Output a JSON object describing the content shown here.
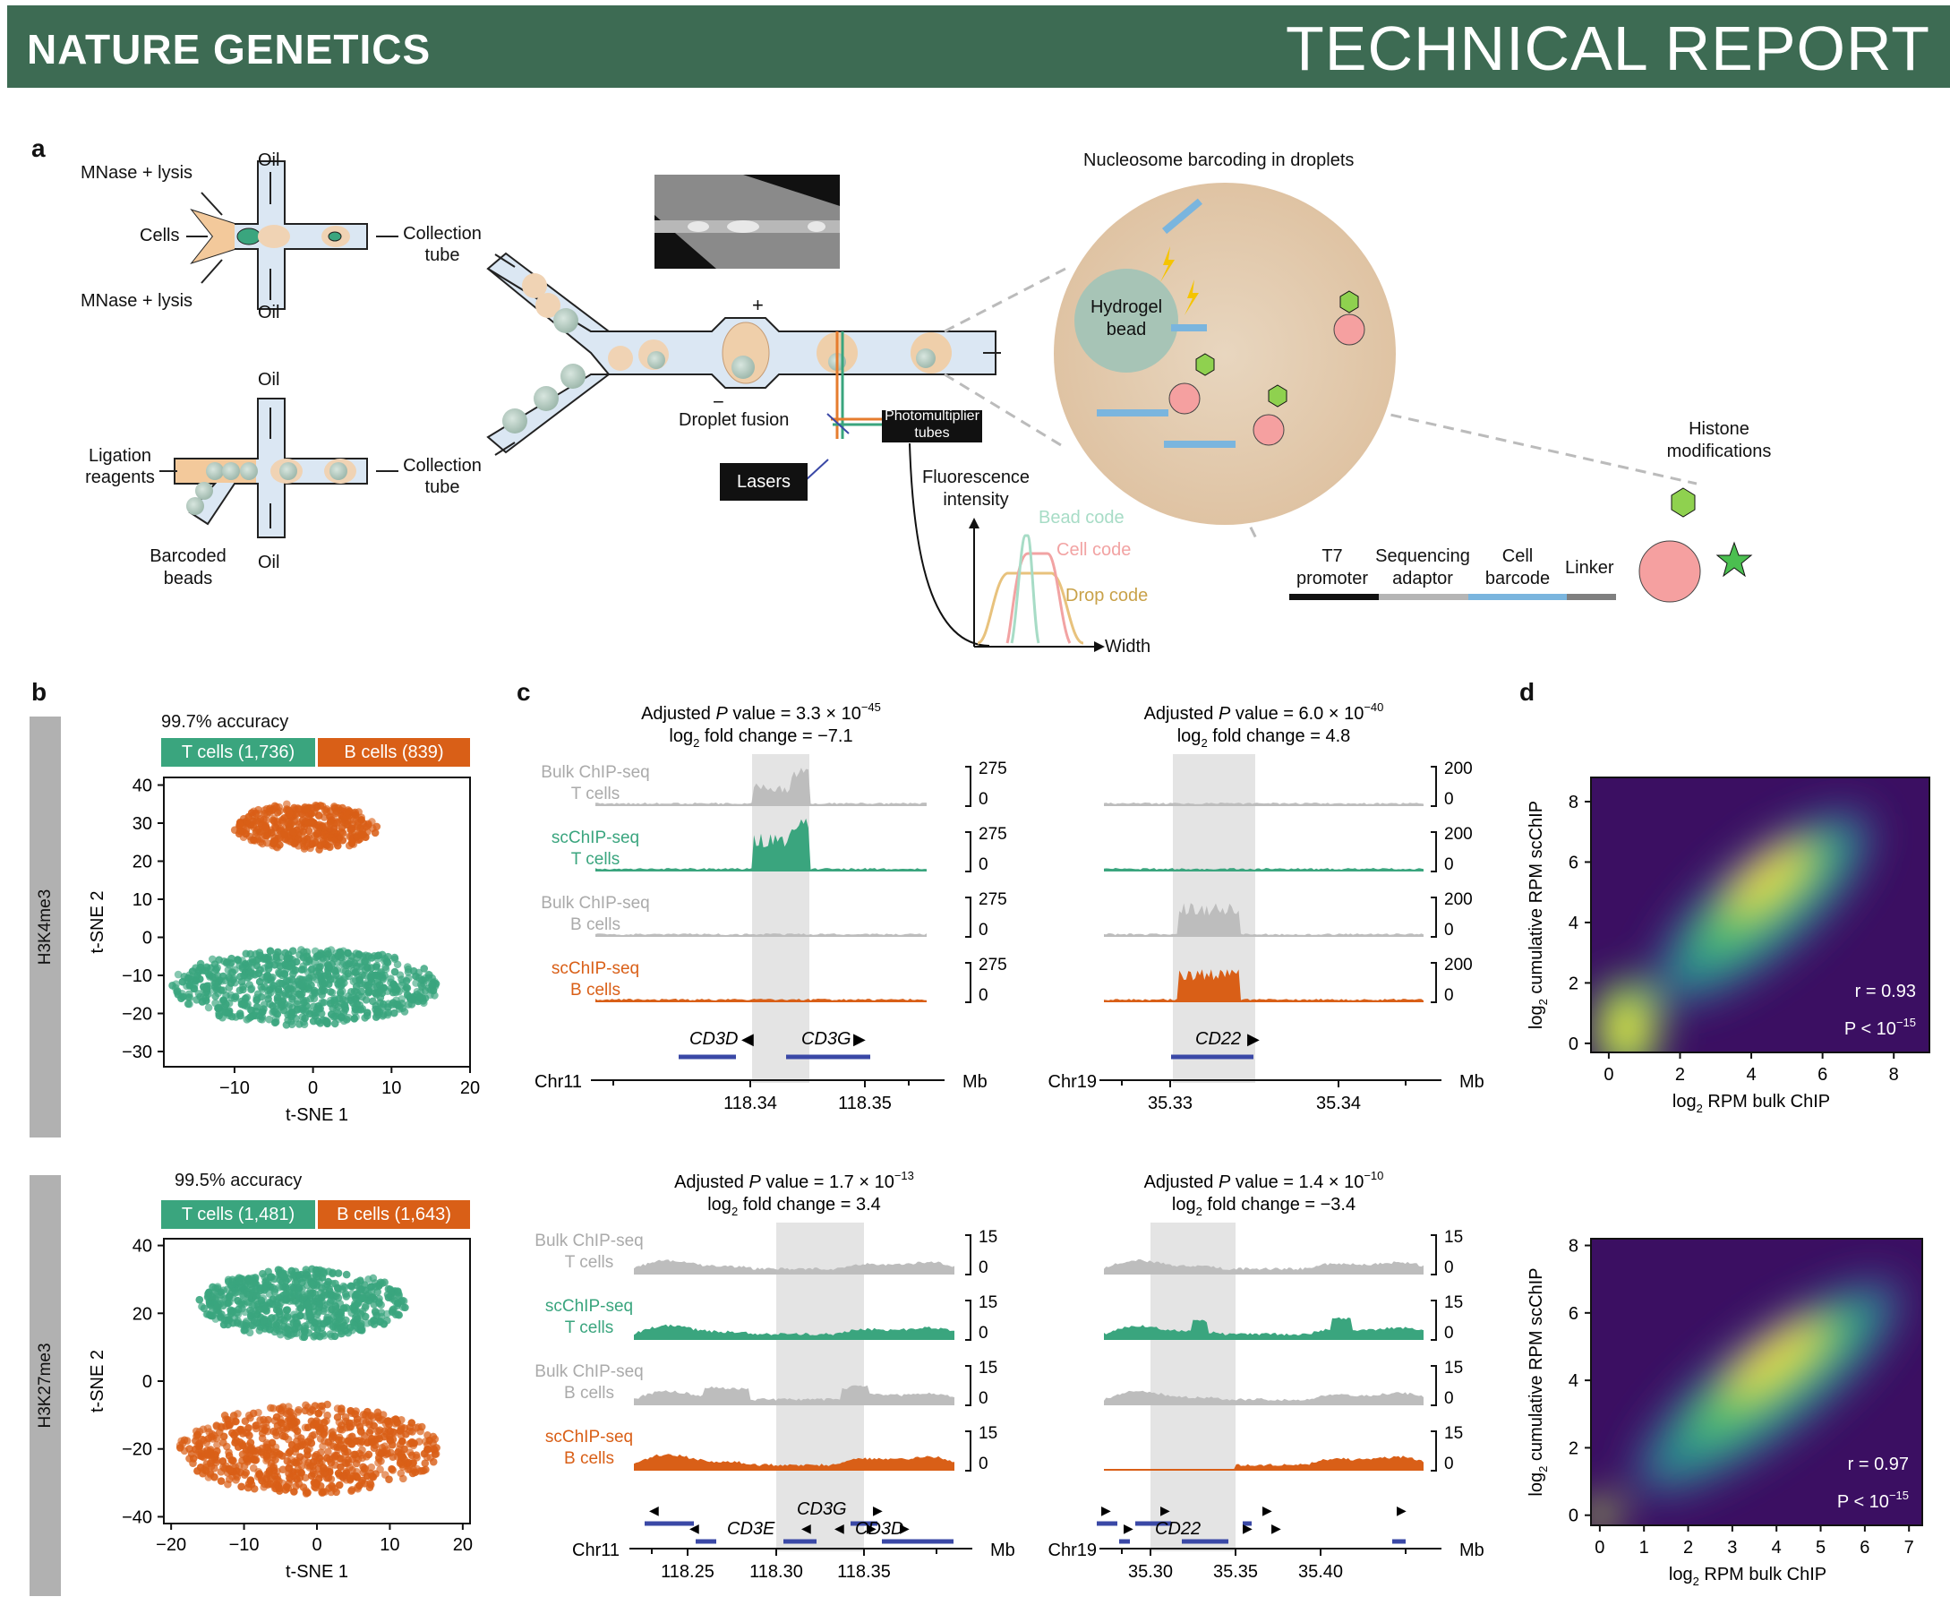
{
  "header": {
    "journal": "NATURE GENETICS",
    "report_type": "TECHNICAL REPORT"
  },
  "colors": {
    "banner": "#3d6b53",
    "t_cells": "#3aa57e",
    "b_cells": "#d95f17",
    "bulk": "#bdbdbd",
    "gene": "#3a48a6"
  },
  "panel_a": {
    "letter": "a",
    "labels": {
      "mnase_top": "MNase + lysis",
      "mnase_bottom": "MNase + lysis",
      "cells": "Cells",
      "oil_1": "Oil",
      "oil_2": "Oil",
      "oil_3": "Oil",
      "oil_4": "Oil",
      "collection_1": "Collection",
      "tube_1": "tube",
      "collection_2": "Collection",
      "tube_2": "tube",
      "ligation": "Ligation",
      "reagents": "reagents",
      "barcoded": "Barcoded",
      "beads": "beads",
      "droplet_fusion": "Droplet fusion",
      "plus": "+",
      "minus": "−",
      "lasers": "Lasers",
      "pmt_1": "Photomultiplier",
      "pmt_2": "tubes",
      "fluorescence_1": "Fluorescence",
      "fluorescence_2": "intensity",
      "width": "Width",
      "bead_code": "Bead code",
      "cell_code": "Cell code",
      "drop_code": "Drop code",
      "nucleosome_title": "Nucleosome barcoding in droplets",
      "hydrogel_1": "Hydrogel",
      "hydrogel_2": "bead",
      "histone_1": "Histone",
      "histone_2": "modifications",
      "t7_1": "T7",
      "t7_2": "promoter",
      "seq_1": "Sequencing",
      "seq_2": "adaptor",
      "cell_1": "Cell",
      "cell_2": "barcode",
      "linker": "Linker"
    }
  },
  "panel_b": {
    "letter": "b",
    "plots": [
      {
        "mark": "H3K4me3",
        "accuracy": "99.7% accuracy",
        "t_label": "T cells (1,736)",
        "b_label": "B cells (839)",
        "xlabel": "t-SNE 1",
        "ylabel": "t-SNE 2",
        "xticks": [
          "−10",
          "0",
          "10",
          "20"
        ],
        "yticks": [
          "40",
          "30",
          "20",
          "10",
          "0",
          "−10",
          "−20",
          "−30"
        ]
      },
      {
        "mark": "H3K27me3",
        "accuracy": "99.5% accuracy",
        "t_label": "T cells (1,481)",
        "b_label": "B cells (1,643)",
        "xlabel": "t-SNE 1",
        "ylabel": "t-SNE 2",
        "xticks": [
          "−20",
          "−10",
          "0",
          "10",
          "20"
        ],
        "yticks": [
          "40",
          "20",
          "0",
          "−20",
          "−40"
        ]
      }
    ]
  },
  "panel_c": {
    "letter": "c",
    "track_labels": [
      [
        "Bulk ChIP-seq",
        "T cells"
      ],
      [
        "scChIP-seq",
        "T cells"
      ],
      [
        "Bulk ChIP-seq",
        "B cells"
      ],
      [
        "scChIP-seq",
        "B cells"
      ]
    ],
    "loci": [
      {
        "title_pre": "Adjusted ",
        "title_p": "P",
        "title_mid": " value = 3.3 × 10",
        "title_exp": "−45",
        "fc_pre": "log",
        "fc_sub": "2",
        "fc_post": " fold change = −7.1",
        "scale_max": "275",
        "scale_min": "0",
        "chr": "Chr11",
        "unit": "Mb",
        "ticks": [
          "118.34",
          "118.35"
        ],
        "genes": [
          "CD3D",
          "CD3G"
        ]
      },
      {
        "title_pre": "Adjusted ",
        "title_p": "P",
        "title_mid": " value = 6.0 × 10",
        "title_exp": "−40",
        "fc_pre": "log",
        "fc_sub": "2",
        "fc_post": " fold change = 4.8",
        "scale_max": "200",
        "scale_min": "0",
        "chr": "Chr19",
        "unit": "Mb",
        "ticks": [
          "35.33",
          "35.34"
        ],
        "genes": [
          "CD22"
        ]
      },
      {
        "title_pre": "Adjusted ",
        "title_p": "P",
        "title_mid": " value = 1.7 × 10",
        "title_exp": "−13",
        "fc_pre": "log",
        "fc_sub": "2",
        "fc_post": " fold change = 3.4",
        "scale_max": "15",
        "scale_min": "0",
        "chr": "Chr11",
        "unit": "Mb",
        "ticks": [
          "118.25",
          "118.30",
          "118.35"
        ],
        "genes": [
          "CD3G",
          "CD3E",
          "CD3D"
        ]
      },
      {
        "title_pre": "Adjusted ",
        "title_p": "P",
        "title_mid": " value = 1.4 × 10",
        "title_exp": "−10",
        "fc_pre": "log",
        "fc_sub": "2",
        "fc_post": " fold change = −3.4",
        "scale_max": "15",
        "scale_min": "0",
        "chr": "Chr19",
        "unit": "Mb",
        "ticks": [
          "35.30",
          "35.35",
          "35.40"
        ],
        "genes": [
          "CD22"
        ]
      }
    ]
  },
  "panel_d": {
    "letter": "d",
    "plots": [
      {
        "r": "r = 0.93",
        "p_pre": "P < 10",
        "p_exp": "−15",
        "xticks": [
          "0",
          "2",
          "4",
          "6",
          "8"
        ],
        "yticks": [
          "0",
          "2",
          "4",
          "6",
          "8"
        ],
        "xlabel_pre": "log",
        "xlabel_sub": "2",
        "xlabel_post": " RPM bulk ChIP",
        "ylabel_pre": "log",
        "ylabel_sub": "2",
        "ylabel_post": " cumulative RPM scChIP"
      },
      {
        "r": "r = 0.97",
        "p_pre": "P < 10",
        "p_exp": "−15",
        "xticks": [
          "0",
          "1",
          "2",
          "3",
          "4",
          "5",
          "6",
          "7"
        ],
        "yticks": [
          "0",
          "2",
          "4",
          "6",
          "8"
        ],
        "xlabel_pre": "log",
        "xlabel_sub": "2",
        "xlabel_post": " RPM bulk ChIP",
        "ylabel_pre": "log",
        "ylabel_sub": "2",
        "ylabel_post": " cumulative RPM scChIP"
      }
    ]
  },
  "chart_data": [
    {
      "type": "scatter",
      "title": "H3K4me3 t-SNE",
      "xlabel": "t-SNE 1",
      "ylabel": "t-SNE 2",
      "xlim": [
        -19,
        20
      ],
      "ylim": [
        -34,
        42
      ],
      "series": [
        {
          "name": "T cells (1,736)",
          "count": 1736,
          "center": [
            -1,
            -13
          ],
          "spread": [
            17,
            10
          ]
        },
        {
          "name": "B cells (839)",
          "count": 839,
          "center": [
            -1,
            29
          ],
          "spread": [
            9,
            6
          ]
        }
      ]
    },
    {
      "type": "scatter",
      "title": "H3K27me3 t-SNE",
      "xlabel": "t-SNE 1",
      "ylabel": "t-SNE 2",
      "xlim": [
        -21,
        21
      ],
      "ylim": [
        -42,
        42
      ],
      "series": [
        {
          "name": "T cells (1,481)",
          "count": 1481,
          "center": [
            -2,
            23
          ],
          "spread": [
            14,
            10
          ]
        },
        {
          "name": "B cells (1,643)",
          "count": 1643,
          "center": [
            -1,
            -20
          ],
          "spread": [
            18,
            13
          ]
        }
      ]
    },
    {
      "type": "heatmap",
      "xlabel": "log2 RPM bulk ChIP",
      "ylabel": "log2 cumulative RPM scChIP",
      "xlim": [
        -0.5,
        9
      ],
      "ylim": [
        -0.3,
        8.8
      ],
      "r": 0.93,
      "p": "P < 10^-15"
    },
    {
      "type": "heatmap",
      "xlabel": "log2 RPM bulk ChIP",
      "ylabel": "log2 cumulative RPM scChIP",
      "xlim": [
        -0.2,
        7.3
      ],
      "ylim": [
        -0.3,
        8.2
      ],
      "r": 0.97,
      "p": "P < 10^-15"
    }
  ]
}
